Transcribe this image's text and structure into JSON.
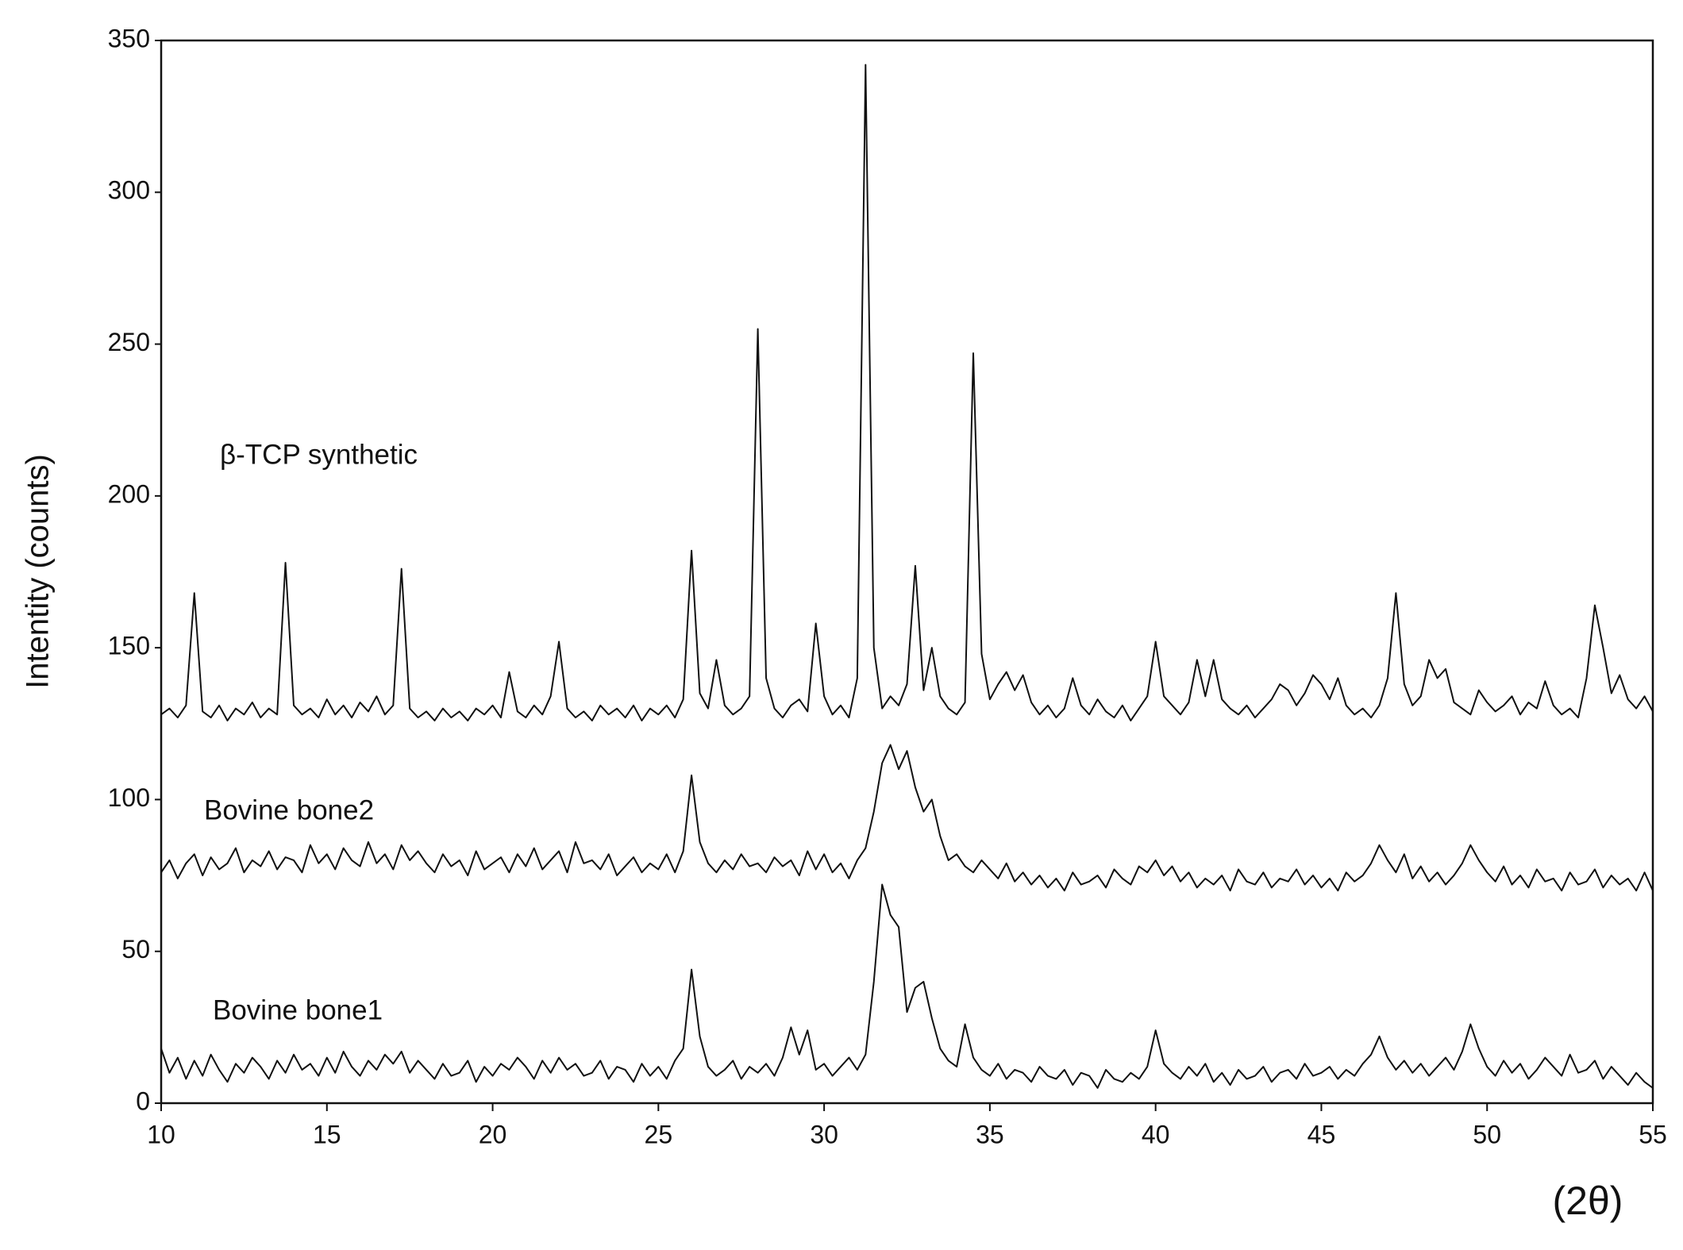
{
  "chart_data": {
    "type": "line",
    "y_label": "Intentity (counts)",
    "x_label": "(2θ)",
    "xlim": [
      10,
      55
    ],
    "ylim": [
      0,
      350
    ],
    "xticks": [
      10,
      15,
      20,
      25,
      30,
      35,
      40,
      45,
      50,
      55
    ],
    "yticks": [
      0,
      50,
      100,
      150,
      200,
      250,
      300,
      350
    ],
    "grid": false,
    "x": [
      10,
      10.25,
      10.5,
      10.75,
      11,
      11.25,
      11.5,
      11.75,
      12,
      12.25,
      12.5,
      12.75,
      13,
      13.25,
      13.5,
      13.75,
      14,
      14.25,
      14.5,
      14.75,
      15,
      15.25,
      15.5,
      15.75,
      16,
      16.25,
      16.5,
      16.75,
      17,
      17.25,
      17.5,
      17.75,
      18,
      18.25,
      18.5,
      18.75,
      19,
      19.25,
      19.5,
      19.75,
      20,
      20.25,
      20.5,
      20.75,
      21,
      21.25,
      21.5,
      21.75,
      22,
      22.25,
      22.5,
      22.75,
      23,
      23.25,
      23.5,
      23.75,
      24,
      24.25,
      24.5,
      24.75,
      25,
      25.25,
      25.5,
      25.75,
      26,
      26.25,
      26.5,
      26.75,
      27,
      27.25,
      27.5,
      27.75,
      28,
      28.25,
      28.5,
      28.75,
      29,
      29.25,
      29.5,
      29.75,
      30,
      30.25,
      30.5,
      30.75,
      31,
      31.25,
      31.5,
      31.75,
      32,
      32.25,
      32.5,
      32.75,
      33,
      33.25,
      33.5,
      33.75,
      34,
      34.25,
      34.5,
      34.75,
      35,
      35.25,
      35.5,
      35.75,
      36,
      36.25,
      36.5,
      36.75,
      37,
      37.25,
      37.5,
      37.75,
      38,
      38.25,
      38.5,
      38.75,
      39,
      39.25,
      39.5,
      39.75,
      40,
      40.25,
      40.5,
      40.75,
      41,
      41.25,
      41.5,
      41.75,
      42,
      42.25,
      42.5,
      42.75,
      43,
      43.25,
      43.5,
      43.75,
      44,
      44.25,
      44.5,
      44.75,
      45,
      45.25,
      45.5,
      45.75,
      46,
      46.25,
      46.5,
      46.75,
      47,
      47.25,
      47.5,
      47.75,
      48,
      48.25,
      48.5,
      48.75,
      49,
      49.25,
      49.5,
      49.75,
      50,
      50.25,
      50.5,
      50.75,
      51,
      51.25,
      51.5,
      51.75,
      52,
      52.25,
      52.5,
      52.75,
      53,
      53.25,
      53.5,
      53.75,
      54,
      54.25,
      54.5,
      54.75,
      55
    ],
    "series": [
      {
        "name": "β-TCP synthetic",
        "color": "#111111",
        "values": [
          128,
          130,
          127,
          131,
          168,
          129,
          127,
          131,
          126,
          130,
          128,
          132,
          127,
          130,
          128,
          178,
          131,
          128,
          130,
          127,
          133,
          128,
          131,
          127,
          132,
          129,
          134,
          128,
          131,
          176,
          130,
          127,
          129,
          126,
          130,
          127,
          129,
          126,
          130,
          128,
          131,
          127,
          142,
          129,
          127,
          131,
          128,
          134,
          152,
          130,
          127,
          129,
          126,
          131,
          128,
          130,
          127,
          131,
          126,
          130,
          128,
          131,
          127,
          133,
          182,
          135,
          130,
          146,
          131,
          128,
          130,
          134,
          255,
          140,
          130,
          127,
          131,
          133,
          129,
          158,
          134,
          128,
          131,
          127,
          140,
          342,
          150,
          130,
          134,
          131,
          138,
          177,
          136,
          150,
          134,
          130,
          128,
          132,
          247,
          148,
          133,
          138,
          142,
          136,
          141,
          132,
          128,
          131,
          127,
          130,
          140,
          131,
          128,
          133,
          129,
          127,
          131,
          126,
          130,
          134,
          152,
          134,
          131,
          128,
          132,
          146,
          134,
          146,
          133,
          130,
          128,
          131,
          127,
          130,
          133,
          138,
          136,
          131,
          135,
          141,
          138,
          133,
          140,
          131,
          128,
          130,
          127,
          131,
          140,
          168,
          138,
          131,
          134,
          146,
          140,
          143,
          132,
          130,
          128,
          136,
          132,
          129,
          131,
          134,
          128,
          132,
          130,
          139,
          131,
          128,
          130,
          127,
          140,
          164,
          150,
          135,
          141,
          133,
          130,
          134,
          129
        ]
      },
      {
        "name": "Bovine bone2",
        "color": "#111111",
        "values": [
          76,
          80,
          74,
          79,
          82,
          75,
          81,
          77,
          79,
          84,
          76,
          80,
          78,
          83,
          77,
          81,
          80,
          76,
          85,
          79,
          82,
          77,
          84,
          80,
          78,
          86,
          79,
          82,
          77,
          85,
          80,
          83,
          79,
          76,
          82,
          78,
          80,
          75,
          83,
          77,
          79,
          81,
          76,
          82,
          78,
          84,
          77,
          80,
          83,
          76,
          86,
          79,
          80,
          77,
          82,
          75,
          78,
          81,
          76,
          79,
          77,
          82,
          76,
          83,
          108,
          86,
          79,
          76,
          80,
          77,
          82,
          78,
          79,
          76,
          81,
          78,
          80,
          75,
          83,
          77,
          82,
          76,
          79,
          74,
          80,
          84,
          96,
          112,
          118,
          110,
          116,
          104,
          96,
          100,
          88,
          80,
          82,
          78,
          76,
          80,
          77,
          74,
          79,
          73,
          76,
          72,
          75,
          71,
          74,
          70,
          76,
          72,
          73,
          75,
          71,
          77,
          74,
          72,
          78,
          76,
          80,
          75,
          78,
          73,
          76,
          71,
          74,
          72,
          75,
          70,
          77,
          73,
          72,
          76,
          71,
          74,
          73,
          77,
          72,
          75,
          71,
          74,
          70,
          76,
          73,
          75,
          79,
          85,
          80,
          76,
          82,
          74,
          78,
          73,
          76,
          72,
          75,
          79,
          85,
          80,
          76,
          73,
          78,
          72,
          75,
          71,
          77,
          73,
          74,
          70,
          76,
          72,
          73,
          77,
          71,
          75,
          72,
          74,
          70,
          76,
          70
        ]
      },
      {
        "name": "Bovine bone1",
        "color": "#111111",
        "values": [
          18,
          10,
          15,
          8,
          14,
          9,
          16,
          11,
          7,
          13,
          10,
          15,
          12,
          8,
          14,
          10,
          16,
          11,
          13,
          9,
          15,
          10,
          17,
          12,
          9,
          14,
          11,
          16,
          13,
          17,
          10,
          14,
          11,
          8,
          13,
          9,
          10,
          14,
          7,
          12,
          9,
          13,
          11,
          15,
          12,
          8,
          14,
          10,
          15,
          11,
          13,
          9,
          10,
          14,
          8,
          12,
          11,
          7,
          13,
          9,
          12,
          8,
          14,
          18,
          44,
          22,
          12,
          9,
          11,
          14,
          8,
          12,
          10,
          13,
          9,
          15,
          25,
          16,
          24,
          11,
          13,
          9,
          12,
          15,
          11,
          16,
          40,
          72,
          62,
          58,
          30,
          38,
          40,
          28,
          18,
          14,
          12,
          26,
          15,
          11,
          9,
          13,
          8,
          11,
          10,
          7,
          12,
          9,
          8,
          11,
          6,
          10,
          9,
          5,
          11,
          8,
          7,
          10,
          8,
          12,
          24,
          13,
          10,
          8,
          12,
          9,
          13,
          7,
          10,
          6,
          11,
          8,
          9,
          12,
          7,
          10,
          11,
          8,
          13,
          9,
          10,
          12,
          8,
          11,
          9,
          13,
          16,
          22,
          15,
          11,
          14,
          10,
          13,
          9,
          12,
          15,
          11,
          17,
          26,
          18,
          12,
          9,
          14,
          10,
          13,
          8,
          11,
          15,
          12,
          9,
          16,
          10,
          11,
          14,
          8,
          12,
          9,
          6,
          10,
          7,
          5
        ]
      }
    ]
  }
}
